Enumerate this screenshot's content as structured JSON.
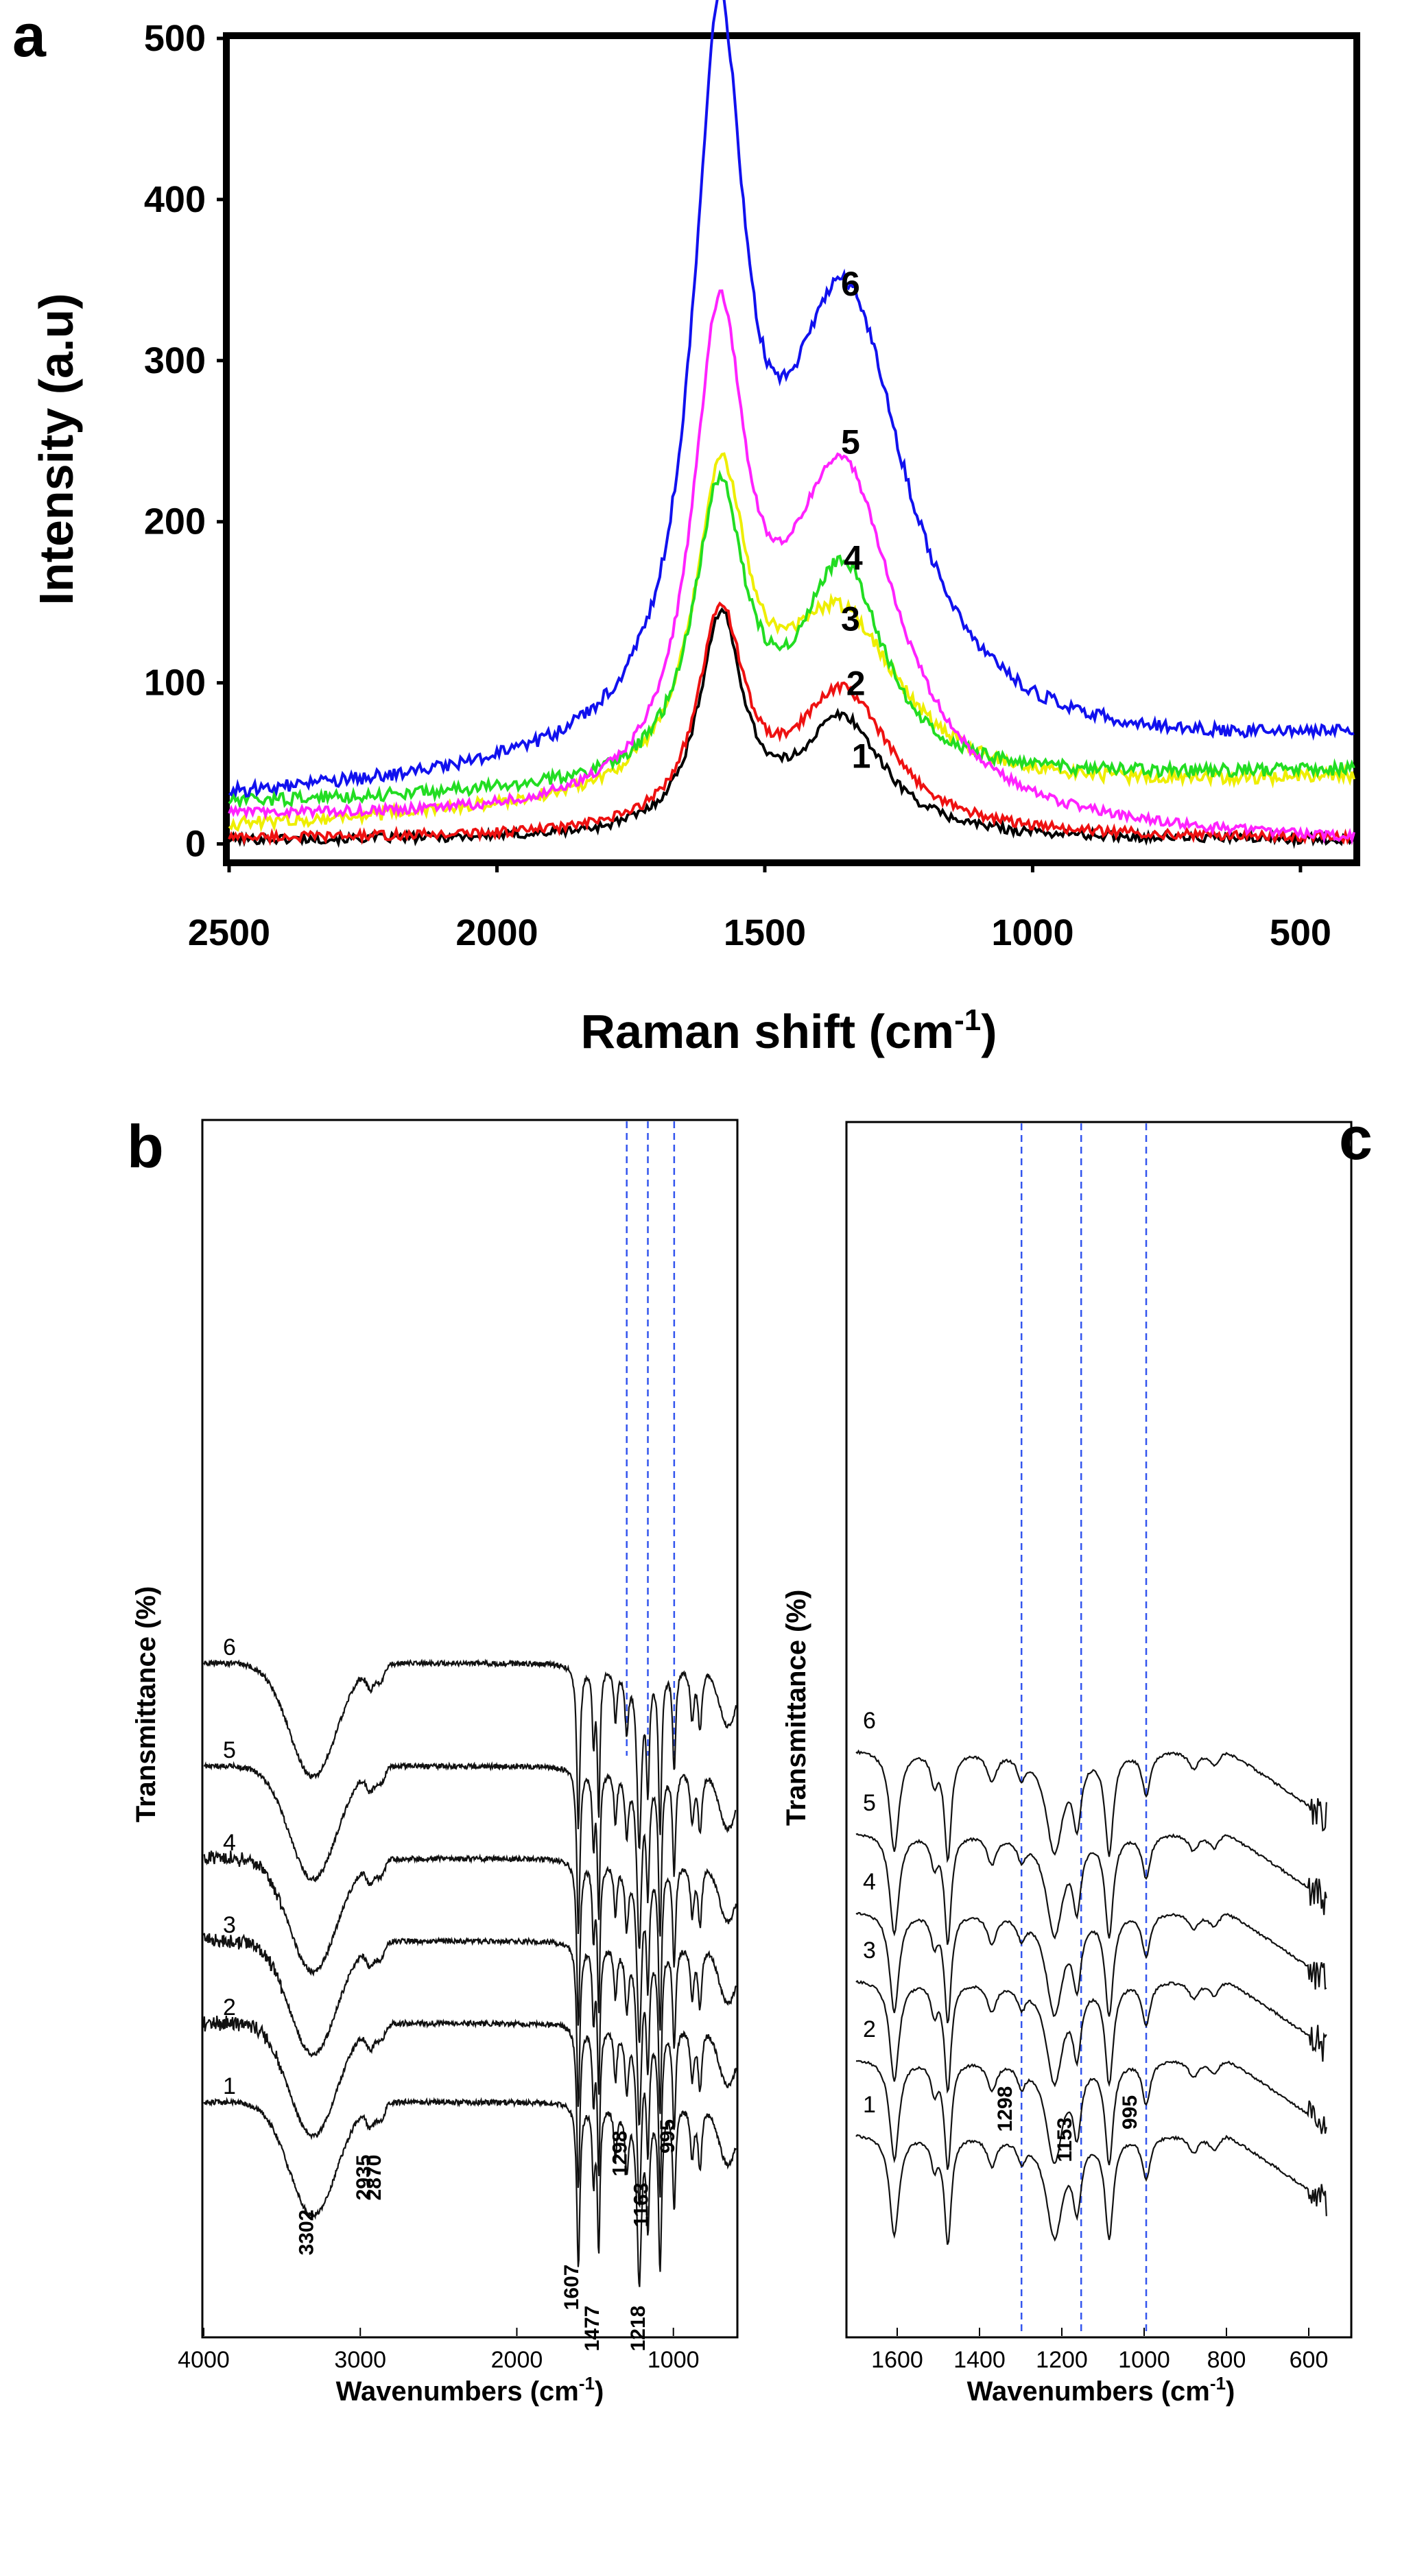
{
  "chart_data": [
    {
      "panel": "a",
      "type": "line",
      "xlabel": "Raman shift (cm",
      "xlabel_sup": "-1",
      "xlabel_tail": ")",
      "ylabel": "Intensity (a.u)",
      "xlim": [
        2500,
        400
      ],
      "ylim": [
        -10,
        500
      ],
      "xticks": [
        2500,
        2000,
        1500,
        1000,
        500
      ],
      "yticks": [
        0,
        100,
        200,
        300,
        400,
        500
      ],
      "grid": false,
      "series": [
        {
          "name": "1",
          "color": "#000000",
          "baseline": 2,
          "noise": 3,
          "bands": [
            [
              1582,
              132,
              50
            ],
            [
              1355,
              72,
              95
            ]
          ],
          "label_xy": [
            1320,
            55
          ]
        },
        {
          "name": "2",
          "color": "#ee1111",
          "baseline": 3,
          "noise": 3,
          "bands": [
            [
              1582,
              130,
              52
            ],
            [
              1355,
              88,
              110
            ]
          ],
          "label_xy": [
            1330,
            100
          ]
        },
        {
          "name": "3",
          "color": "#eeee00",
          "baseline": 25,
          "slope": -15,
          "noise": 4,
          "bands": [
            [
              1582,
              185,
              60
            ],
            [
              1360,
              110,
              140
            ]
          ],
          "label_xy": [
            1340,
            140
          ]
        },
        {
          "name": "4",
          "color": "#22dd22",
          "baseline": 35,
          "slope": -10,
          "noise": 4,
          "bands": [
            [
              1585,
              175,
              58
            ],
            [
              1355,
              130,
              95
            ]
          ],
          "label_xy": [
            1335,
            178
          ]
        },
        {
          "name": "5",
          "color": "#ff22ff",
          "baseline": 8,
          "slope": 8,
          "noise": 3,
          "bands": [
            [
              1585,
              280,
              60
            ],
            [
              1355,
              215,
              130
            ]
          ],
          "label_xy": [
            1340,
            250
          ]
        },
        {
          "name": "6",
          "color": "#1111ee",
          "baseline": 45,
          "slope": -18,
          "noise": 4,
          "bands": [
            [
              1585,
              410,
              58
            ],
            [
              1350,
              280,
              140
            ]
          ],
          "label_xy": [
            1340,
            348
          ]
        }
      ]
    },
    {
      "panel": "b",
      "type": "line",
      "xlabel": "Wavenumbers (cm",
      "xlabel_sup": "-1",
      "xlabel_tail": ")",
      "ylabel": "Transmittance (%)",
      "xlim": [
        4000,
        600
      ],
      "xticks": [
        4000,
        3000,
        2000,
        1000
      ],
      "reference_lines": [
        1298,
        1163,
        995
      ],
      "series": [
        {
          "name": "6",
          "offset": 640,
          "noisy": false
        },
        {
          "name": "5",
          "offset": 490,
          "noisy": false
        },
        {
          "name": "4",
          "offset": 355,
          "noisy": true
        },
        {
          "name": "3",
          "offset": 235,
          "noisy": true
        },
        {
          "name": "2",
          "offset": 115,
          "noisy": true
        },
        {
          "name": "1",
          "offset": 0,
          "noisy": false
        }
      ],
      "annotations": [
        {
          "text": "3302",
          "x": 3302
        },
        {
          "text": "2935",
          "x": 2935
        },
        {
          "text": "2870",
          "x": 2870
        },
        {
          "text": "1607",
          "x": 1607
        },
        {
          "text": "1477",
          "x": 1477
        },
        {
          "text": "1298",
          "x": 1298
        },
        {
          "text": "1163",
          "x": 1163
        },
        {
          "text": "1218",
          "x": 1218
        },
        {
          "text": "995",
          "x": 995
        }
      ]
    },
    {
      "panel": "c",
      "type": "line",
      "xlabel": "Wavenumbers (cm",
      "xlabel_sup": "-1",
      "xlabel_tail": ")",
      "ylabel": "Transmittance (%)",
      "xlim": [
        1720,
        500
      ],
      "xticks": [
        1600,
        1400,
        1200,
        1000,
        800,
        600
      ],
      "reference_lines": [
        1298,
        1153,
        995
      ],
      "series": [
        {
          "name": "6",
          "offset": 560
        },
        {
          "name": "5",
          "offset": 440
        },
        {
          "name": "4",
          "offset": 325
        },
        {
          "name": "3",
          "offset": 225
        },
        {
          "name": "2",
          "offset": 110
        },
        {
          "name": "1",
          "offset": 0
        }
      ],
      "annotations": [
        {
          "text": "1298",
          "x": 1298
        },
        {
          "text": "1153",
          "x": 1153
        },
        {
          "text": "995",
          "x": 995
        }
      ]
    }
  ]
}
